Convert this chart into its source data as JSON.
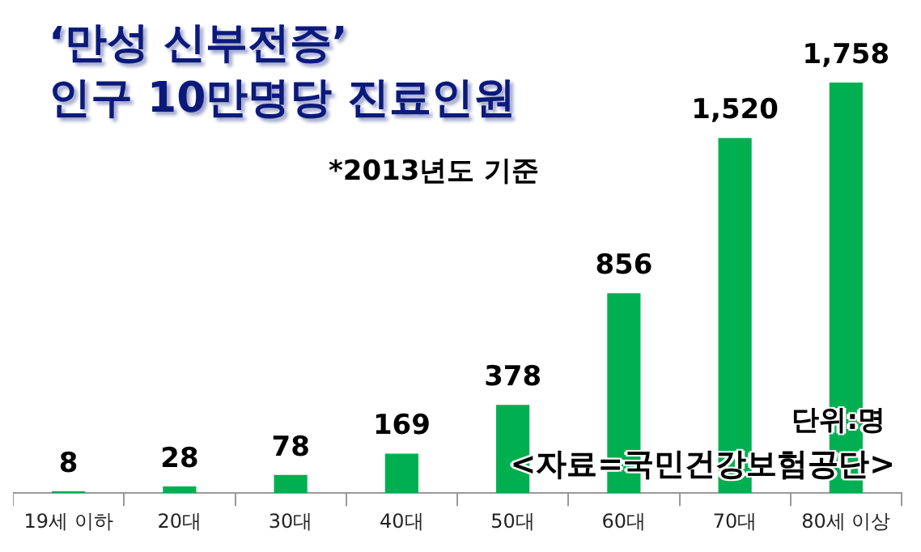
{
  "chart_data": {
    "type": "bar",
    "title": "‘만성 신부전증’\n인구 10만명당 진료인원",
    "annotations": [
      "*2013년도 기준",
      "단위:명",
      "<자료=국민건강보험공단>"
    ],
    "categories": [
      "19세 이하",
      "20대",
      "30대",
      "40대",
      "50대",
      "60대",
      "70대",
      "80세 이상"
    ],
    "values": [
      8,
      28,
      78,
      169,
      378,
      856,
      1520,
      1758
    ],
    "value_labels": [
      "8",
      "28",
      "78",
      "169",
      "378",
      "856",
      "1,520",
      "1,758"
    ],
    "color": "#00b050",
    "grid": false,
    "legend": false
  }
}
